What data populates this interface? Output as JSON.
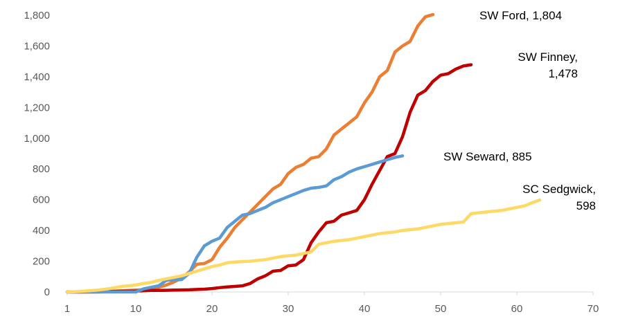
{
  "chart_data": {
    "type": "line",
    "title": "",
    "xlabel": "",
    "ylabel": "",
    "xlim": [
      1,
      70
    ],
    "ylim": [
      0,
      1800
    ],
    "x_ticks": [
      1,
      10,
      20,
      30,
      40,
      50,
      60,
      70
    ],
    "y_ticks": [
      0,
      200,
      400,
      600,
      800,
      1000,
      1200,
      1400,
      1600,
      1800
    ],
    "x_tick_labels": [
      "1",
      "10",
      "20",
      "30",
      "40",
      "50",
      "60",
      "70"
    ],
    "y_tick_labels": [
      "0",
      "200",
      "400",
      "600",
      "800",
      "1,000",
      "1,200",
      "1,400",
      "1,600",
      "1,800"
    ],
    "grid": false,
    "legend": "none",
    "series": [
      {
        "name": "SW Ford",
        "label_lines": [
          "SW Ford, 1,804"
        ],
        "color": "#ED7D31",
        "x": [
          1,
          2,
          3,
          4,
          5,
          6,
          7,
          8,
          9,
          10,
          11,
          12,
          13,
          14,
          15,
          16,
          17,
          18,
          19,
          20,
          21,
          22,
          23,
          24,
          25,
          26,
          27,
          28,
          29,
          30,
          31,
          32,
          33,
          34,
          35,
          36,
          37,
          38,
          39,
          40,
          41,
          42,
          43,
          44,
          45,
          46,
          47,
          48,
          49
        ],
        "values": [
          0,
          0,
          0,
          0,
          2,
          3,
          5,
          8,
          10,
          12,
          15,
          20,
          30,
          45,
          65,
          90,
          130,
          180,
          185,
          210,
          290,
          350,
          420,
          470,
          520,
          570,
          620,
          670,
          700,
          770,
          810,
          830,
          870,
          880,
          930,
          1020,
          1060,
          1100,
          1140,
          1230,
          1300,
          1400,
          1440,
          1560,
          1600,
          1630,
          1730,
          1790,
          1804
        ]
      },
      {
        "name": "SW Finney",
        "label_lines": [
          "SW Finney,",
          "1,478"
        ],
        "color": "#C00000",
        "x": [
          1,
          2,
          3,
          4,
          5,
          6,
          7,
          8,
          9,
          10,
          11,
          12,
          13,
          14,
          15,
          16,
          17,
          18,
          19,
          20,
          21,
          22,
          23,
          24,
          25,
          26,
          27,
          28,
          29,
          30,
          31,
          32,
          33,
          34,
          35,
          36,
          37,
          38,
          39,
          40,
          41,
          42,
          43,
          44,
          45,
          46,
          47,
          48,
          49,
          50,
          51,
          52,
          53,
          54
        ],
        "values": [
          0,
          0,
          0,
          0,
          0,
          2,
          3,
          4,
          5,
          6,
          8,
          10,
          10,
          11,
          12,
          13,
          14,
          16,
          18,
          22,
          28,
          33,
          36,
          40,
          55,
          85,
          105,
          135,
          140,
          170,
          175,
          210,
          320,
          390,
          450,
          460,
          500,
          515,
          530,
          600,
          700,
          790,
          880,
          900,
          1010,
          1170,
          1280,
          1310,
          1370,
          1410,
          1420,
          1450,
          1470,
          1478
        ]
      },
      {
        "name": "SW Seward",
        "label_lines": [
          "SW Seward, 885"
        ],
        "color": "#5B9BD5",
        "x": [
          1,
          2,
          3,
          4,
          5,
          6,
          7,
          8,
          9,
          10,
          11,
          12,
          13,
          14,
          15,
          16,
          17,
          18,
          19,
          20,
          21,
          22,
          23,
          24,
          25,
          26,
          27,
          28,
          29,
          30,
          31,
          32,
          33,
          34,
          35,
          36,
          37,
          38,
          39,
          40,
          41,
          42,
          43,
          44,
          45
        ],
        "values": [
          0,
          0,
          0,
          0,
          0,
          0,
          0,
          0,
          0,
          0,
          20,
          30,
          40,
          75,
          80,
          80,
          120,
          225,
          300,
          330,
          350,
          420,
          460,
          500,
          510,
          530,
          550,
          580,
          600,
          620,
          640,
          660,
          675,
          680,
          690,
          730,
          750,
          780,
          800,
          815,
          830,
          845,
          860,
          875,
          885
        ]
      },
      {
        "name": "SC Sedgwick",
        "label_lines": [
          "SC Sedgwick,",
          "598"
        ],
        "color": "#FFD966",
        "x": [
          1,
          2,
          3,
          4,
          5,
          6,
          7,
          8,
          9,
          10,
          11,
          12,
          13,
          14,
          15,
          16,
          17,
          18,
          19,
          20,
          21,
          22,
          23,
          24,
          25,
          26,
          27,
          28,
          29,
          30,
          31,
          32,
          33,
          34,
          35,
          36,
          37,
          38,
          39,
          40,
          41,
          42,
          43,
          44,
          45,
          46,
          47,
          48,
          49,
          50,
          51,
          52,
          53,
          54,
          55,
          56,
          57,
          58,
          59,
          60,
          61,
          62,
          63
        ],
        "values": [
          0,
          2,
          5,
          8,
          12,
          18,
          25,
          35,
          40,
          45,
          55,
          62,
          75,
          85,
          95,
          105,
          120,
          135,
          150,
          165,
          175,
          190,
          195,
          198,
          200,
          205,
          210,
          220,
          230,
          235,
          240,
          250,
          260,
          310,
          320,
          330,
          335,
          340,
          350,
          360,
          370,
          380,
          385,
          390,
          400,
          405,
          410,
          420,
          430,
          440,
          445,
          450,
          455,
          510,
          515,
          520,
          525,
          530,
          540,
          550,
          560,
          580,
          598
        ]
      }
    ]
  }
}
